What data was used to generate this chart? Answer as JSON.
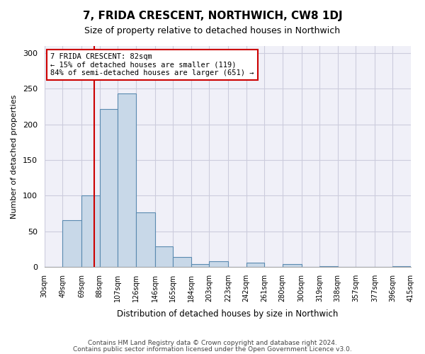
{
  "title": "7, FRIDA CRESCENT, NORTHWICH, CW8 1DJ",
  "subtitle": "Size of property relative to detached houses in Northwich",
  "xlabel": "Distribution of detached houses by size in Northwich",
  "ylabel": "Number of detached properties",
  "bar_color": "#c8d8e8",
  "bar_edge_color": "#5a8ab0",
  "bin_edges": [
    30,
    49,
    69,
    88,
    107,
    126,
    146,
    165,
    184,
    203,
    223,
    242,
    261,
    280,
    300,
    319,
    338,
    357,
    377,
    396,
    415
  ],
  "bin_labels": [
    "30sqm",
    "49sqm",
    "69sqm",
    "88sqm",
    "107sqm",
    "126sqm",
    "146sqm",
    "165sqm",
    "184sqm",
    "203sqm",
    "223sqm",
    "242sqm",
    "261sqm",
    "280sqm",
    "300sqm",
    "319sqm",
    "338sqm",
    "357sqm",
    "377sqm",
    "396sqm",
    "415sqm"
  ],
  "counts": [
    0,
    65,
    100,
    222,
    243,
    76,
    29,
    14,
    4,
    8,
    0,
    6,
    0,
    4,
    0,
    1,
    0,
    0,
    0,
    1
  ],
  "vline_x": 82,
  "vline_color": "#cc0000",
  "annotation_title": "7 FRIDA CRESCENT: 82sqm",
  "annotation_line1": "← 15% of detached houses are smaller (119)",
  "annotation_line2": "84% of semi-detached houses are larger (651) →",
  "annotation_box_color": "#cc0000",
  "ylim": [
    0,
    310
  ],
  "yticks": [
    0,
    50,
    100,
    150,
    200,
    250,
    300
  ],
  "background_color": "#f0f0f8",
  "grid_color": "#ccccdd",
  "footer_line1": "Contains HM Land Registry data © Crown copyright and database right 2024.",
  "footer_line2": "Contains public sector information licensed under the Open Government Licence v3.0."
}
